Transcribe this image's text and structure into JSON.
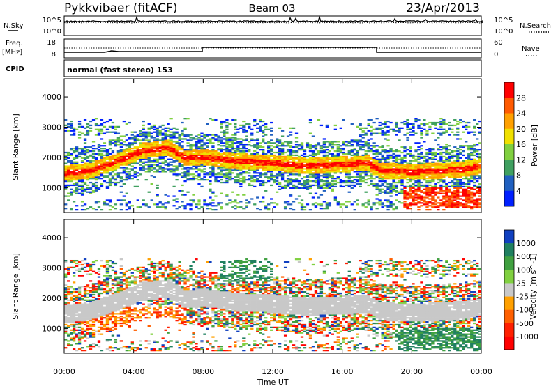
{
  "header": {
    "station": "Pykkvibaer (fitACF)",
    "beam": "Beam 03",
    "date": "23/Apr/2013"
  },
  "param_panels": {
    "nsky": {
      "label": "N.Sky",
      "ticks": [
        "10^5",
        "10^0"
      ]
    },
    "nsearch": {
      "label": "N.Search",
      "ticks": [
        "10^5",
        "10^0"
      ]
    },
    "freq": {
      "label_line1": "Freq.",
      "label_line2": "[MHz]",
      "ticks": [
        "18",
        "8"
      ]
    },
    "nave": {
      "label": "Nave",
      "ticks": [
        "60",
        "0"
      ]
    },
    "cpid": {
      "label": "CPID",
      "value": "normal (fast stereo) 153"
    }
  },
  "chart_data": [
    {
      "type": "heatmap",
      "title": "",
      "ylabel": "Slant Range [km]",
      "xlabel": "",
      "y_ticks": [
        "4000",
        "3000",
        "2000",
        "1000"
      ],
      "ylim": [
        180,
        4600
      ],
      "xlim": [
        0,
        24
      ],
      "colorbar": {
        "label": "Power [dB]",
        "ticks": [
          "28",
          "24",
          "20",
          "16",
          "12",
          "8",
          "4"
        ],
        "colors": [
          "#ff0000",
          "#ff5a00",
          "#ffa000",
          "#f0e000",
          "#80d040",
          "#40a060",
          "#2060c0",
          "#0020ff"
        ]
      },
      "bands": [
        {
          "t": [
            0,
            1.5,
            3,
            4.5,
            6,
            7,
            8,
            10,
            12,
            14,
            16,
            17.5,
            18.2,
            20,
            22,
            23,
            24
          ],
          "r": [
            1450,
            1550,
            1850,
            2200,
            2300,
            1950,
            2000,
            1850,
            1800,
            1700,
            1750,
            1800,
            1550,
            1500,
            1550,
            1600,
            1700
          ],
          "width": 260,
          "core_db": 24
        }
      ]
    },
    {
      "type": "heatmap",
      "title": "",
      "ylabel": "Slant Range [km]",
      "xlabel": "Time UT",
      "y_ticks": [
        "4000",
        "3000",
        "2000",
        "1000"
      ],
      "x_ticks": [
        "00:00",
        "04:00",
        "08:00",
        "12:00",
        "16:00",
        "20:00",
        "00:00"
      ],
      "ylim": [
        180,
        4600
      ],
      "xlim": [
        0,
        24
      ],
      "colorbar": {
        "label": "Velocity [m s^-1]",
        "ticks": [
          "1000",
          "500",
          "100",
          "25",
          "-25",
          "-100",
          "-500",
          "-1000"
        ],
        "colors": [
          "#1040c0",
          "#208060",
          "#40a040",
          "#80d040",
          "#c8c8c8",
          "#ffa000",
          "#ff6000",
          "#ff2000",
          "#ff0000"
        ]
      },
      "bands": [
        {
          "t": [
            0,
            1.5,
            3,
            4.5,
            6,
            7,
            8,
            10,
            12,
            14,
            16,
            17.5,
            18.2,
            20,
            22,
            23,
            24
          ],
          "r": [
            1450,
            1550,
            1850,
            2200,
            2300,
            1950,
            2000,
            1850,
            1800,
            1700,
            1750,
            1800,
            1550,
            1500,
            1550,
            1600,
            1700
          ],
          "width": 300,
          "core_velocity": 0
        }
      ]
    }
  ]
}
